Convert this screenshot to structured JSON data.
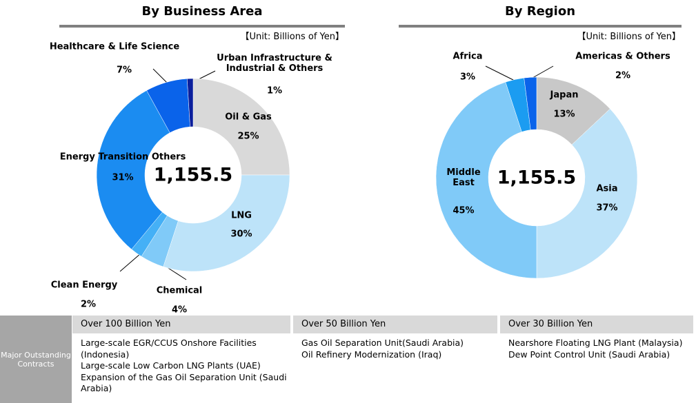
{
  "chart_data": [
    {
      "type": "donut",
      "title": "By Business Area",
      "unit_note": "【Unit: Billions of Yen】",
      "categories": [
        "Oil & Gas",
        "LNG",
        "Chemical",
        "Clean Energy",
        "Energy Transition Others",
        "Healthcare & Life Science",
        "Urban Infrastructure & Industrial & Others"
      ],
      "values": [
        25,
        30,
        4,
        2,
        31,
        7,
        1
      ],
      "value_labels": [
        "25%",
        "30%",
        "4%",
        "2%",
        "31%",
        "7%",
        "1%"
      ],
      "colors": [
        "#d9d9d9",
        "#bde3f9",
        "#80caf8",
        "#45b0f6",
        "#1b8cf1",
        "#0a63ea",
        "#0b1f9c"
      ],
      "total": {
        "value": 1155.5,
        "label": "1,155.5"
      }
    },
    {
      "type": "donut",
      "title": "By Region",
      "unit_note": "【Unit: Billions of Yen】",
      "categories": [
        "Japan",
        "Asia",
        "Middle East",
        "Africa",
        "Americas & Others"
      ],
      "values": [
        13,
        37,
        45,
        3,
        2
      ],
      "value_labels": [
        "13%",
        "37%",
        "45%",
        "3%",
        "2%"
      ],
      "colors": [
        "#c8c8c8",
        "#bde3f9",
        "#80caf8",
        "#1b9cf1",
        "#0a63ea"
      ],
      "total": {
        "value": 1155.5,
        "label": "1,155.5"
      }
    }
  ],
  "table": {
    "row_header": "Major Outstanding Contracts",
    "columns": [
      {
        "header": "Over 100 Billion Yen",
        "items": [
          "Large-scale EGR/CCUS Onshore Facilities (Indonesia)",
          "Large-scale Low Carbon LNG Plants (UAE)",
          "Expansion of the Gas Oil Separation Unit (Saudi Arabia)"
        ]
      },
      {
        "header": "Over 50 Billion Yen",
        "items": [
          "Gas Oil Separation Unit(Saudi Arabia)",
          "Oil Refinery Modernization (Iraq)"
        ]
      },
      {
        "header": "Over 30 Billion Yen",
        "items": [
          "Nearshore Floating LNG Plant (Malaysia)",
          "Dew Point Control Unit (Saudi Arabia)"
        ]
      }
    ]
  }
}
